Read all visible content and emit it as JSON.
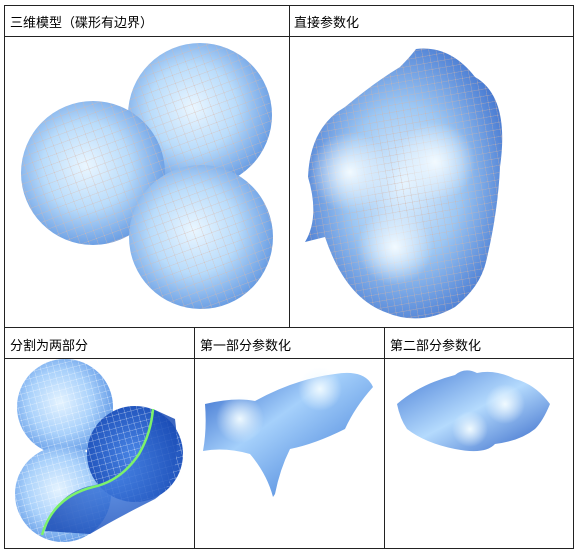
{
  "table": {
    "row1": {
      "left_caption": "三维模型（碟形有边界）",
      "right_caption": "直接参数化"
    },
    "row2": {
      "left_caption": "分割为两部分",
      "middle_caption": "第一部分参数化",
      "right_caption": "第二部分参数化"
    }
  },
  "colors": {
    "mesh_light": "#cfeaff",
    "mesh_mid": "#8fbdf1",
    "mesh_dark": "#2d63c8",
    "mesh_deep": "#1b4fb7",
    "wire": "#d6b6a8",
    "cut_line": "#7cf26b"
  },
  "icons": [
    "dish-mesh-3d",
    "direct-param-mesh",
    "segmented-mesh",
    "part1-param-mesh",
    "part2-param-mesh"
  ]
}
